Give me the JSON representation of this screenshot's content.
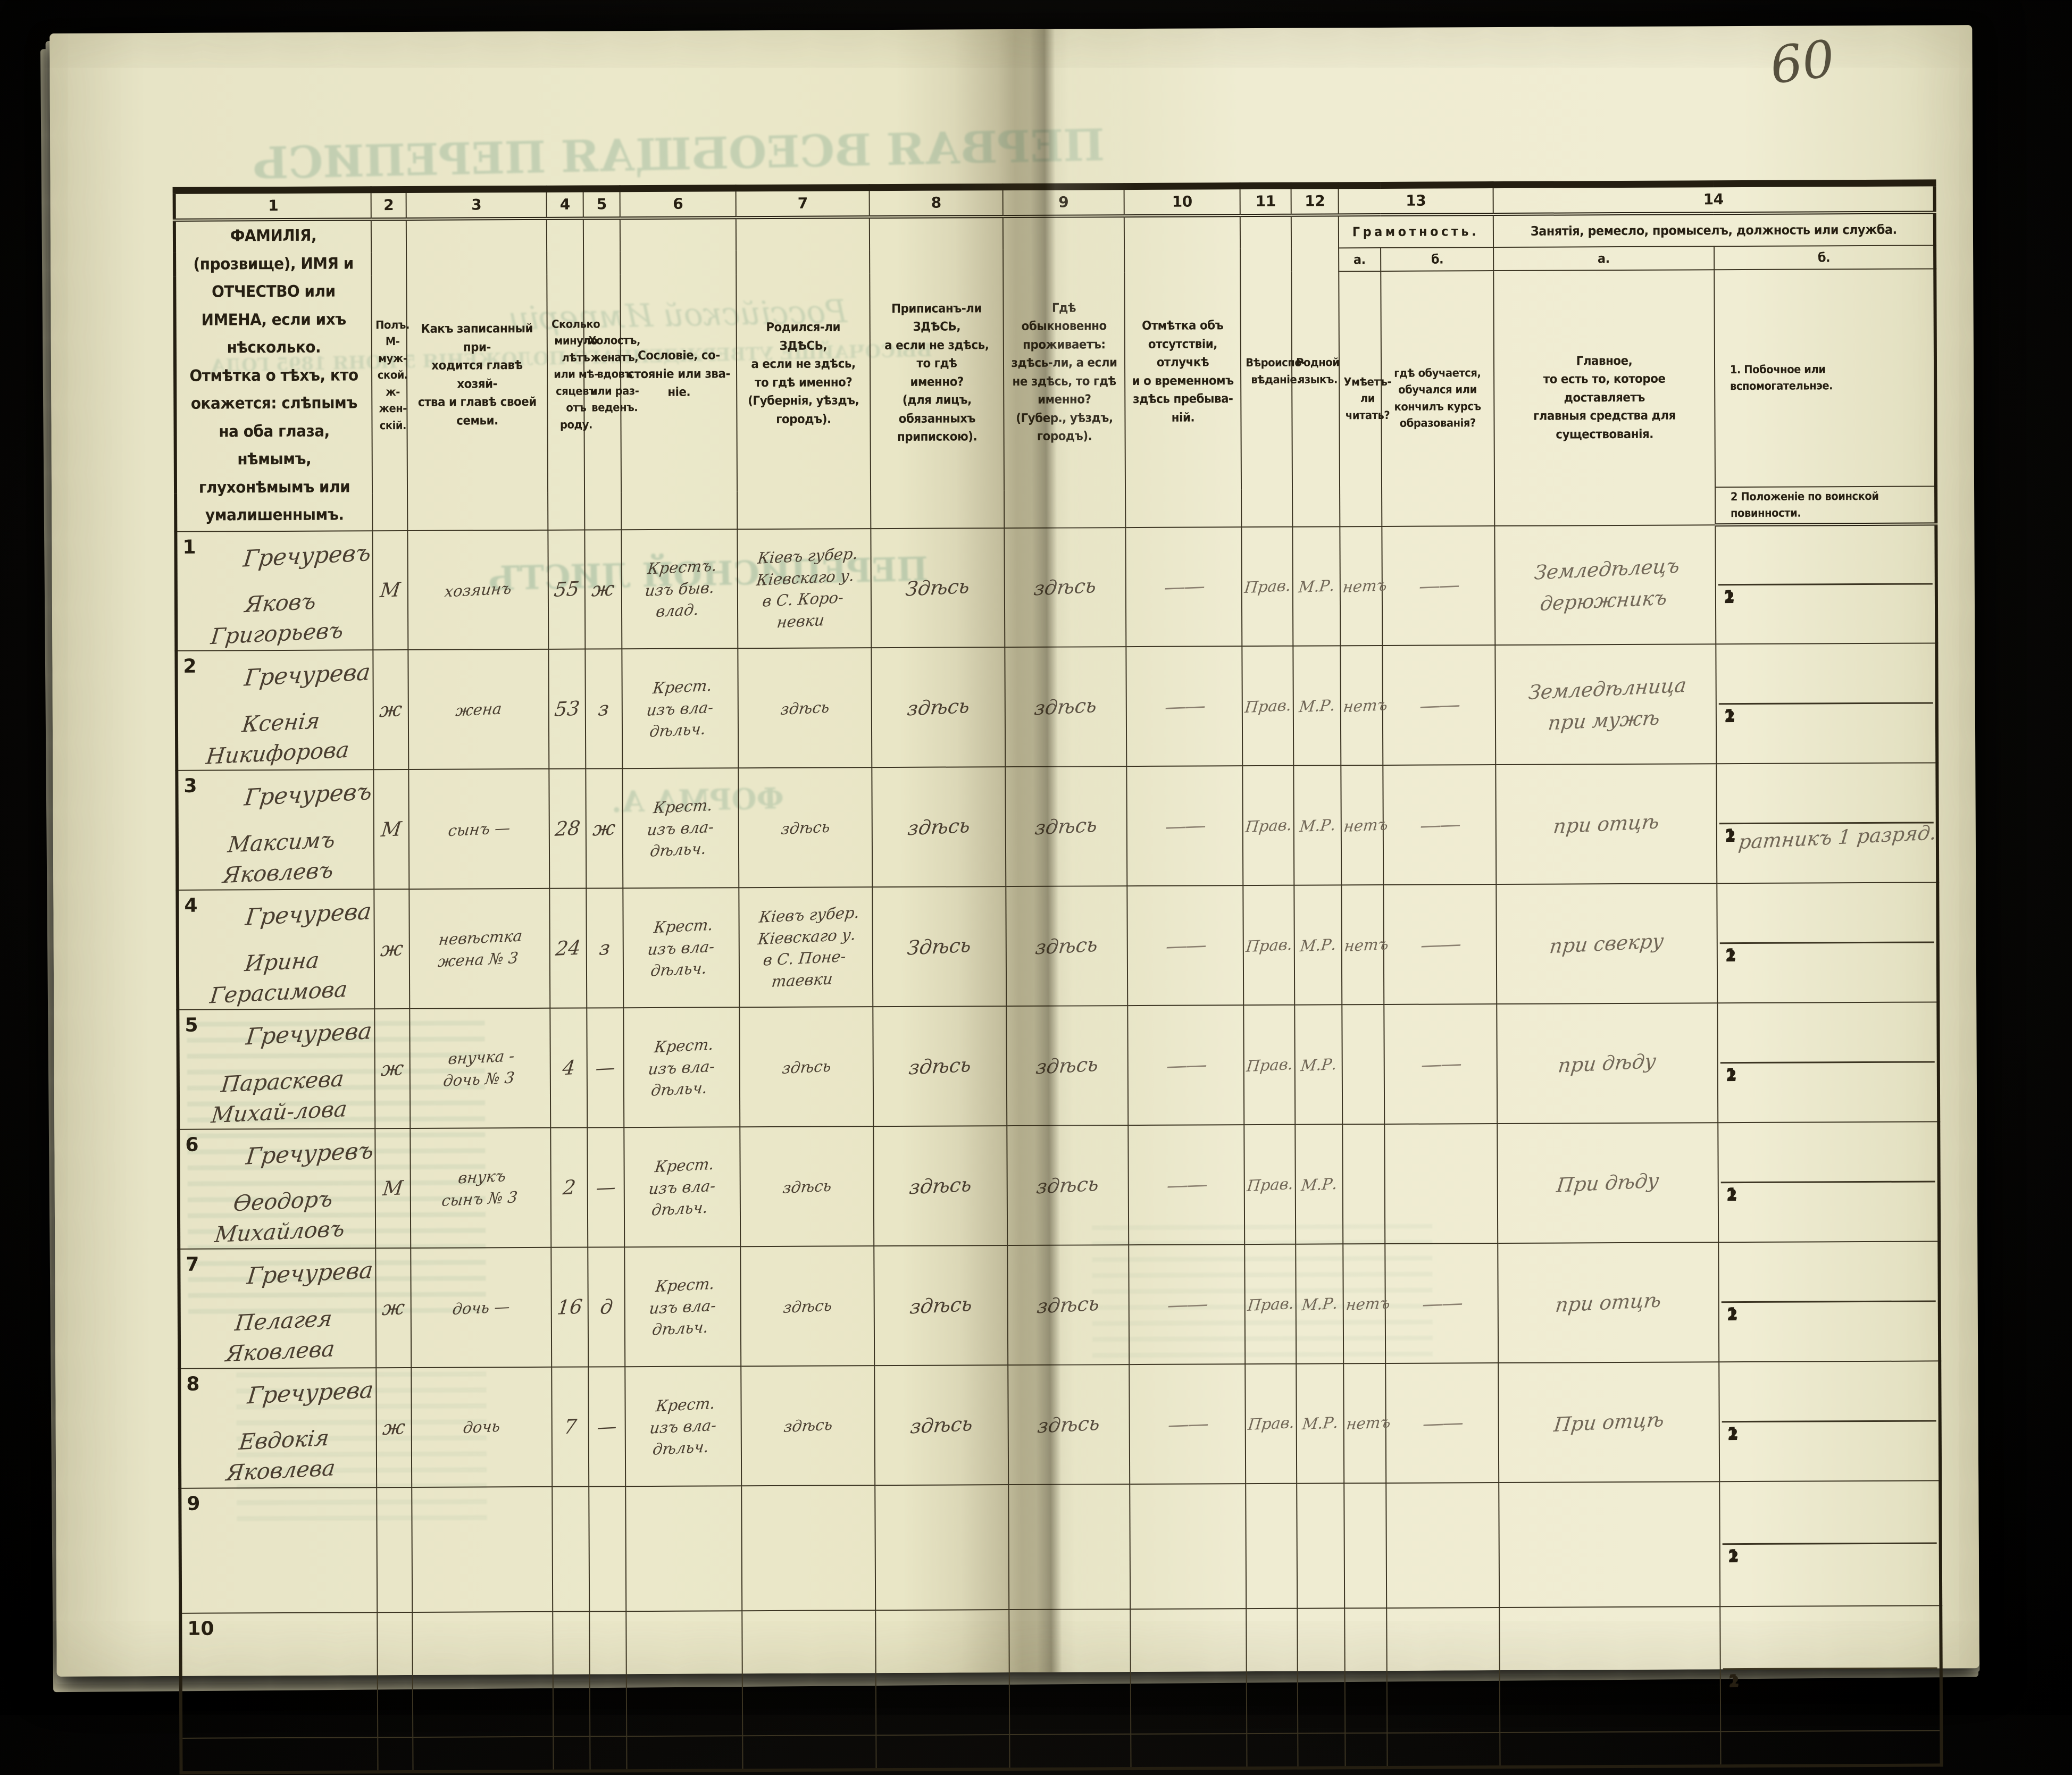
{
  "page": {
    "number": "60"
  },
  "bleed_through": {
    "b1": "ПЕРВАЯ ВСЕОБЩАЯ ПЕРЕПИСЬ",
    "b2": "Россійской Имперіи",
    "b3": "ВЫСОЧАЙШЕ УТВЕРЖДЕННАГО ПОЛОЖЕНІЯ 5 ІЮНЯ 1895 ГОДА",
    "b4": "ПЕРЕПИСНОЙ ЛИСТЪ",
    "b5": "ФОРМА А."
  },
  "header": {
    "cols": [
      {
        "num": "1",
        "text": "ФАМИЛІЯ, (прозвище), ИМЯ и ОТЧЕСТВО или\nИМЕНА, если ихъ нѣсколько.\nОтмѣтка о тѣхъ, кто окажется: слѣпымъ\nна оба глаза, нѣмымъ, глухонѣмымъ или\nумалишеннымъ."
      },
      {
        "num": "2",
        "text": "Полъ.\nМ-муж-\nской.\nж-жен-\nскій."
      },
      {
        "num": "3",
        "text": "Какъ записанный при-\nходится главѣ хозяй-\nства и главѣ своей\nсемьи."
      },
      {
        "num": "4",
        "text": "Сколько\nминуло\nлѣтъ\nили мѣ-\nсяцевъ\nотъ роду."
      },
      {
        "num": "5",
        "text": "Холостъ,\nженатъ,\nвдовъ\nили раз-\nведенъ."
      },
      {
        "num": "6",
        "text": "Сословіе, со-\nстояніе или зва-\nніе."
      },
      {
        "num": "7",
        "text": "Родился-ли ЗДѢСЬ,\nа если не здѣсь,\nто гдѣ именно?\n(Губернія, уѣздъ, городъ)."
      },
      {
        "num": "8",
        "text": "Приписанъ-ли ЗДѢСЬ,\nа если не здѣсь, то гдѣ\nименно?\n(для лицъ, обязанныхъ\nприпискою)."
      },
      {
        "num": "9",
        "text": "Гдѣ обыкновенно\nпроживаетъ:\nздѣсь-ли, а если\nне здѣсь, то гдѣ\nименно?\n(Губер., уѣздъ, городъ)."
      },
      {
        "num": "10",
        "text": "Отмѣтка объ\nотсутствіи, отлучкѣ\nи о временномъ\nздѣсь пребыва-\nній."
      },
      {
        "num": "11",
        "text": "Вѣроиспо-\nвѣданіе."
      },
      {
        "num": "12",
        "text": "Родной\nязыкъ."
      }
    ],
    "g13": {
      "num": "13",
      "title": "Грамотность.",
      "a": "а.",
      "b": "б.",
      "a_text": "Умѣетъ-\nли\nчитать?",
      "b_text": "гдѣ обучается,\nобучался или\nкончилъ курсъ\nобразованія?"
    },
    "g14": {
      "num": "14",
      "title": "Занятія, ремесло, промыселъ, должность или служба.",
      "a": "а.",
      "b": "б.",
      "a_text": "Главное,\nто есть то, которое доставляетъ\nглавныя средства для существованія.",
      "b1": "1.  Побочное или вспомогательнэе.",
      "b2": "2  Положеніе по воинской повинности."
    },
    "side_labels": [
      "1",
      "2"
    ]
  },
  "rows": [
    {
      "num": "1",
      "surname": "Гречуревъ",
      "given": "Яковъ Григорьевъ",
      "sex": "М",
      "relation": "хозяинъ",
      "age": "55",
      "marital": "ж",
      "estate": "Крестъ.\nизъ быв.\nвлад.",
      "born": "Кіевъ губер.\nКіевскаго у.\nв С. Коро-\nневки",
      "registered": "Здѣсь",
      "resides": "здѣсь",
      "absence": "——",
      "faith": "Прав.",
      "language": "М.Р.",
      "reads": "нетъ",
      "education": "——",
      "occupation": "Земледѣлецъ\nдерюжникъ",
      "side1": "",
      "side2": ""
    },
    {
      "num": "2",
      "surname": "Гречурева",
      "given": "Ксенія Никифорова",
      "sex": "ж",
      "relation": "жена",
      "age": "53",
      "marital": "з",
      "estate": "Крест.\nизъ вла-\nдѣльч.",
      "born": "здѣсь",
      "registered": "здѣсь",
      "resides": "здѣсь",
      "absence": "——",
      "faith": "Прав.",
      "language": "М.Р.",
      "reads": "нетъ",
      "education": "——",
      "occupation": "Земледѣлница\nпри мужѣ",
      "side1": "",
      "side2": ""
    },
    {
      "num": "3",
      "surname": "Гречуревъ",
      "given": "Максимъ Яковлевъ",
      "sex": "М",
      "relation": "сынъ —",
      "age": "28",
      "marital": "ж",
      "estate": "Крест.\nизъ вла-\nдѣльч.",
      "born": "здѣсь",
      "registered": "здѣсь",
      "resides": "здѣсь",
      "absence": "——",
      "faith": "Прав.",
      "language": "М.Р.",
      "reads": "нетъ",
      "education": "——",
      "occupation": "при отцѣ",
      "side1": "",
      "side2": "ратникъ 1 разряд."
    },
    {
      "num": "4",
      "surname": "Гречурева",
      "given": "Ирина Герасимова",
      "sex": "ж",
      "relation": "невѣстка\nжена № 3",
      "age": "24",
      "marital": "з",
      "estate": "Крест.\nизъ вла-\nдѣльч.",
      "born": "Кіевъ губер.\nКіевскаго у.\nв С. Поне-\nтаевки",
      "registered": "Здѣсь",
      "resides": "здѣсь",
      "absence": "——",
      "faith": "Прав.",
      "language": "М.Р.",
      "reads": "нетъ",
      "education": "——",
      "occupation": "при свекру",
      "side1": "",
      "side2": ""
    },
    {
      "num": "5",
      "surname": "Гречурева",
      "given": "Параскева Михай-лова",
      "sex": "ж",
      "relation": "внучка -\nдочь № 3",
      "age": "4",
      "marital": "—",
      "estate": "Крест.\nизъ вла-\nдѣльч.",
      "born": "здѣсь",
      "registered": "здѣсь",
      "resides": "здѣсь",
      "absence": "——",
      "faith": "Прав.",
      "language": "М.Р.",
      "reads": "",
      "education": "——",
      "occupation": "при дѣду",
      "side1": "",
      "side2": ""
    },
    {
      "num": "6",
      "surname": "Гречуревъ",
      "given": "Ѳеодоръ Михайловъ",
      "sex": "М",
      "relation": "внукъ\nсынъ № 3",
      "age": "2",
      "marital": "—",
      "estate": "Крест.\nизъ вла-\nдѣльч.",
      "born": "здѣсь",
      "registered": "здѣсь",
      "resides": "здѣсь",
      "absence": "——",
      "faith": "Прав.",
      "language": "М.Р.",
      "reads": "",
      "education": "",
      "occupation": "При дѣду",
      "side1": "",
      "side2": ""
    },
    {
      "num": "7",
      "surname": "Гречурева",
      "given": "Пелагея Яковлева",
      "sex": "ж",
      "relation": "дочь —",
      "age": "16",
      "marital": "д",
      "estate": "Крест.\nизъ вла-\nдѣльч.",
      "born": "здѣсь",
      "registered": "здѣсь",
      "resides": "здѣсь",
      "absence": "——",
      "faith": "Прав.",
      "language": "М.Р.",
      "reads": "нетъ",
      "education": "——",
      "occupation": "при отцѣ",
      "side1": "",
      "side2": ""
    },
    {
      "num": "8",
      "surname": "Гречурева",
      "given": "Евдокія Яковлева",
      "sex": "ж",
      "relation": "дочь",
      "age": "7",
      "marital": "—",
      "estate": "Крест.\nизъ вла-\nдѣльч.",
      "born": "здѣсь",
      "registered": "здѣсь",
      "resides": "здѣсь",
      "absence": "——",
      "faith": "Прав.",
      "language": "М.Р.",
      "reads": "нетъ",
      "education": "——",
      "occupation": "При отцѣ",
      "side1": "",
      "side2": ""
    },
    {
      "num": "9",
      "surname": "",
      "given": "",
      "sex": "",
      "relation": "",
      "age": "",
      "marital": "",
      "estate": "",
      "born": "",
      "registered": "",
      "resides": "",
      "absence": "",
      "faith": "",
      "language": "",
      "reads": "",
      "education": "",
      "occupation": "",
      "side1": "",
      "side2": ""
    },
    {
      "num": "10",
      "surname": "",
      "given": "",
      "sex": "",
      "relation": "",
      "age": "",
      "marital": "",
      "estate": "",
      "born": "",
      "registered": "",
      "resides": "",
      "absence": "",
      "faith": "",
      "language": "",
      "reads": "",
      "education": "",
      "occupation": "",
      "side1": "",
      "side2": ""
    }
  ]
}
